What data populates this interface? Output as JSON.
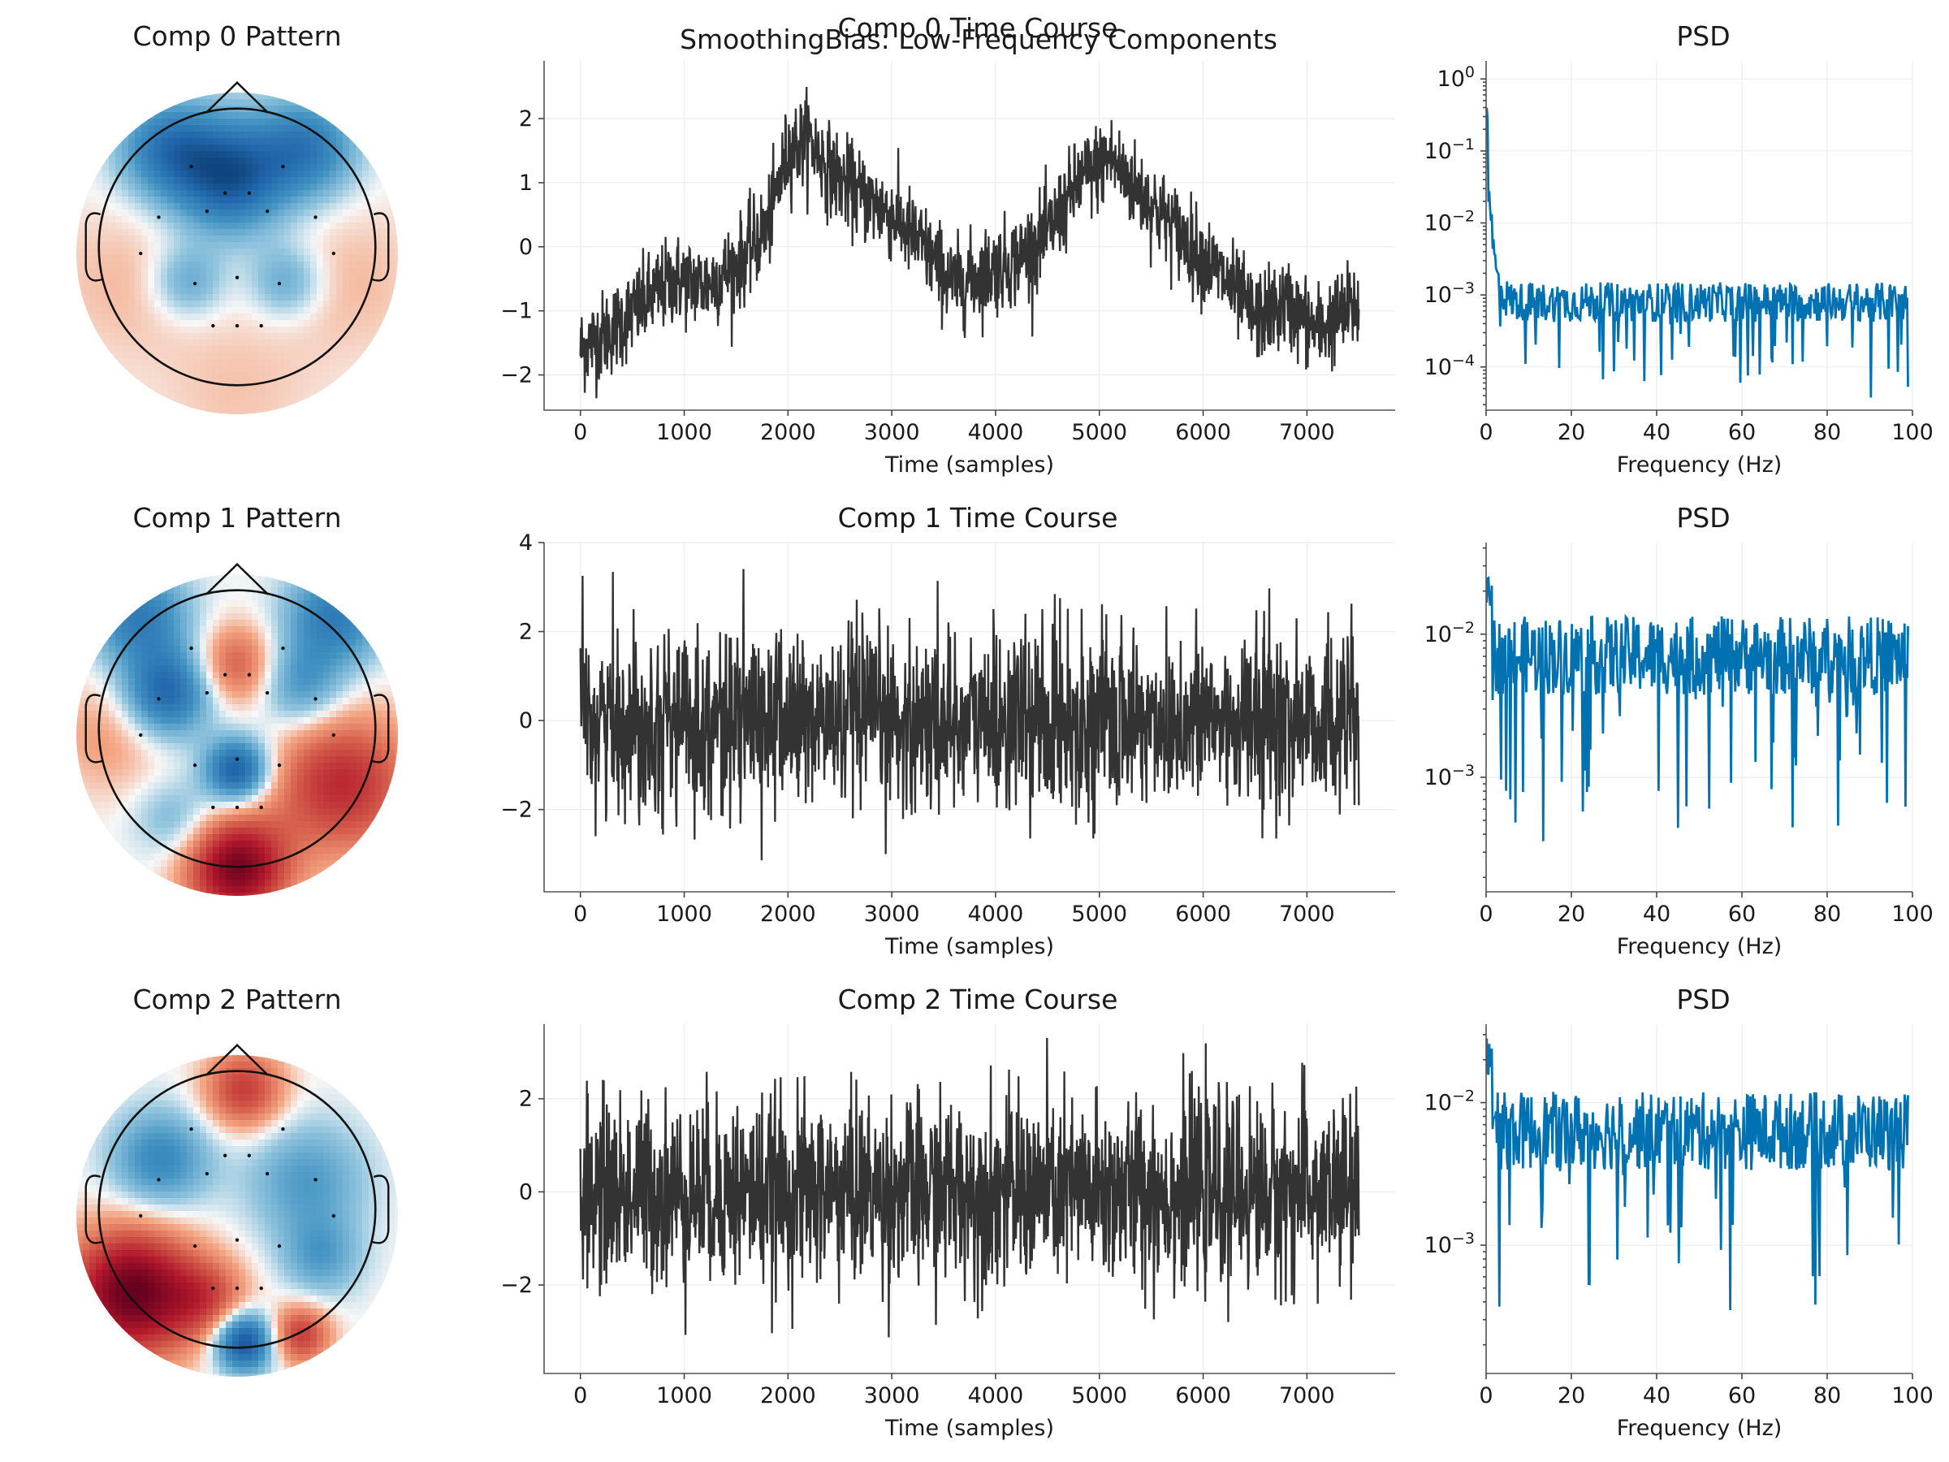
{
  "suptitle": "SmoothingBias: Low-Frequency Components",
  "colors": {
    "time_line": "#333333",
    "psd_line": "#0072b2",
    "map_negative": "#08519c",
    "map_positive": "#7f0016"
  },
  "chart_data": [
    {
      "type": "heatmap",
      "title": "Comp 0 Pattern",
      "description_only": true,
      "blobs": [
        {
          "x": -0.05,
          "y": 0.55,
          "v": -1.0,
          "s": 0.28
        },
        {
          "x": -0.5,
          "y": 0.75,
          "v": -0.7,
          "s": 0.25
        },
        {
          "x": 0.5,
          "y": 0.75,
          "v": -0.7,
          "s": 0.25
        },
        {
          "x": -0.35,
          "y": -0.2,
          "v": -0.4,
          "s": 0.18
        },
        {
          "x": 0.35,
          "y": -0.2,
          "v": -0.4,
          "s": 0.18
        },
        {
          "x": -0.8,
          "y": -0.2,
          "v": 0.15,
          "s": 0.4
        },
        {
          "x": 0.8,
          "y": -0.2,
          "v": 0.15,
          "s": 0.4
        },
        {
          "x": 0.0,
          "y": -1.0,
          "v": 0.12,
          "s": 0.4
        }
      ]
    },
    {
      "type": "line",
      "title": "Comp 0 Time Course",
      "xlabel": "Time (samples)",
      "ylabel": "",
      "xlim": [
        -350,
        7850
      ],
      "ylim": [
        -2.55,
        2.9
      ],
      "xticks": [
        0,
        1000,
        2000,
        3000,
        4000,
        5000,
        6000,
        7000
      ],
      "yticks": [
        -2,
        -1,
        0,
        1,
        2
      ],
      "envelope_x": [
        0,
        300,
        600,
        900,
        1200,
        1500,
        1800,
        2000,
        2200,
        2400,
        2700,
        3000,
        3300,
        3600,
        3900,
        4200,
        4500,
        4800,
        5100,
        5300,
        5600,
        5900,
        6200,
        6500,
        6800,
        7100,
        7500
      ],
      "envelope_y": [
        -1.6,
        -1.3,
        -0.9,
        -0.5,
        -0.6,
        -0.3,
        0.3,
        1.5,
        1.7,
        1.2,
        0.8,
        0.5,
        0.0,
        -0.6,
        -0.4,
        -0.2,
        0.2,
        1.0,
        1.4,
        1.0,
        0.5,
        0.0,
        -0.5,
        -1.1,
        -0.9,
        -1.3,
        -0.9
      ],
      "noise_amplitude": 0.35,
      "samples": 7500
    },
    {
      "type": "line",
      "title": "PSD",
      "xlabel": "Frequency (Hz)",
      "ylabel": "",
      "yscale": "log",
      "xlim": [
        0,
        100
      ],
      "ylim_exp": [
        -4.6,
        0.25
      ],
      "xticks": [
        0,
        20,
        40,
        60,
        80,
        100
      ],
      "yticks": [
        "10^0",
        "10^-1",
        "10^-2",
        "10^-3",
        "10^-4"
      ],
      "ytick_exps": [
        0,
        -1,
        -2,
        -3,
        -4
      ],
      "baseline_exp": -3.1,
      "low_freq_peak_exp": 0.0
    },
    {
      "type": "heatmap",
      "title": "Comp 1 Pattern",
      "description_only": true,
      "blobs": [
        {
          "x": 0.0,
          "y": 0.5,
          "v": 0.55,
          "s": 0.2
        },
        {
          "x": -0.5,
          "y": 0.3,
          "v": -0.9,
          "s": 0.22
        },
        {
          "x": 0.45,
          "y": 0.35,
          "v": -0.5,
          "s": 0.22
        },
        {
          "x": -0.7,
          "y": 0.85,
          "v": -0.7,
          "s": 0.25
        },
        {
          "x": 0.7,
          "y": 0.85,
          "v": -0.7,
          "s": 0.25
        },
        {
          "x": 0.0,
          "y": -0.25,
          "v": -1.0,
          "s": 0.16
        },
        {
          "x": 0.0,
          "y": -0.95,
          "v": 1.2,
          "s": 0.25
        },
        {
          "x": 0.75,
          "y": -0.35,
          "v": 0.8,
          "s": 0.35
        },
        {
          "x": -0.45,
          "y": -0.6,
          "v": -0.3,
          "s": 0.2
        },
        {
          "x": -0.9,
          "y": 0.0,
          "v": 0.25,
          "s": 0.3
        }
      ]
    },
    {
      "type": "line",
      "title": "Comp 1 Time Course",
      "xlabel": "Time (samples)",
      "ylabel": "",
      "xlim": [
        -350,
        7850
      ],
      "ylim": [
        -3.85,
        4.0
      ],
      "xticks": [
        0,
        1000,
        2000,
        3000,
        4000,
        5000,
        6000,
        7000
      ],
      "yticks": [
        -2,
        0,
        2,
        4
      ],
      "envelope_x": [
        0,
        7500
      ],
      "envelope_y": [
        0,
        0
      ],
      "noise_amplitude": 1.0,
      "samples": 7500
    },
    {
      "type": "line",
      "title": "PSD",
      "xlabel": "Frequency (Hz)",
      "ylabel": "",
      "yscale": "log",
      "xlim": [
        0,
        100
      ],
      "ylim_exp": [
        -3.8,
        -1.36
      ],
      "xticks": [
        0,
        20,
        40,
        60,
        80,
        100
      ],
      "yticks": [
        "10^-2",
        "10^-3"
      ],
      "ytick_exps": [
        -2,
        -3
      ],
      "baseline_exp": -2.15,
      "low_freq_peak_exp": -1.5
    },
    {
      "type": "heatmap",
      "title": "Comp 2 Pattern",
      "description_only": true,
      "blobs": [
        {
          "x": -0.75,
          "y": -0.55,
          "v": 1.3,
          "s": 0.32
        },
        {
          "x": -0.2,
          "y": -0.6,
          "v": 0.5,
          "s": 0.2
        },
        {
          "x": 0.05,
          "y": 0.9,
          "v": 0.7,
          "s": 0.2
        },
        {
          "x": -0.55,
          "y": 0.4,
          "v": -0.6,
          "s": 0.25
        },
        {
          "x": 0.5,
          "y": 0.25,
          "v": -0.45,
          "s": 0.3
        },
        {
          "x": 0.05,
          "y": -0.9,
          "v": -1.1,
          "s": 0.15
        },
        {
          "x": 0.45,
          "y": -0.85,
          "v": 0.7,
          "s": 0.15
        },
        {
          "x": 0.6,
          "y": -0.3,
          "v": -0.4,
          "s": 0.2
        }
      ]
    },
    {
      "type": "line",
      "title": "Comp 2 Time Course",
      "xlabel": "Time (samples)",
      "ylabel": "",
      "xlim": [
        -350,
        7850
      ],
      "ylim": [
        -3.9,
        3.6
      ],
      "xticks": [
        0,
        1000,
        2000,
        3000,
        4000,
        5000,
        6000,
        7000
      ],
      "yticks": [
        -2,
        0,
        2
      ],
      "envelope_x": [
        0,
        7500
      ],
      "envelope_y": [
        0,
        0
      ],
      "noise_amplitude": 1.0,
      "samples": 7500
    },
    {
      "type": "line",
      "title": "PSD",
      "xlabel": "Frequency (Hz)",
      "ylabel": "",
      "yscale": "log",
      "xlim": [
        0,
        100
      ],
      "ylim_exp": [
        -3.9,
        -1.45
      ],
      "xticks": [
        0,
        20,
        40,
        60,
        80,
        100
      ],
      "yticks": [
        "10^-2",
        "10^-3"
      ],
      "ytick_exps": [
        -2,
        -3
      ],
      "baseline_exp": -2.2,
      "low_freq_peak_exp": -1.55
    }
  ]
}
